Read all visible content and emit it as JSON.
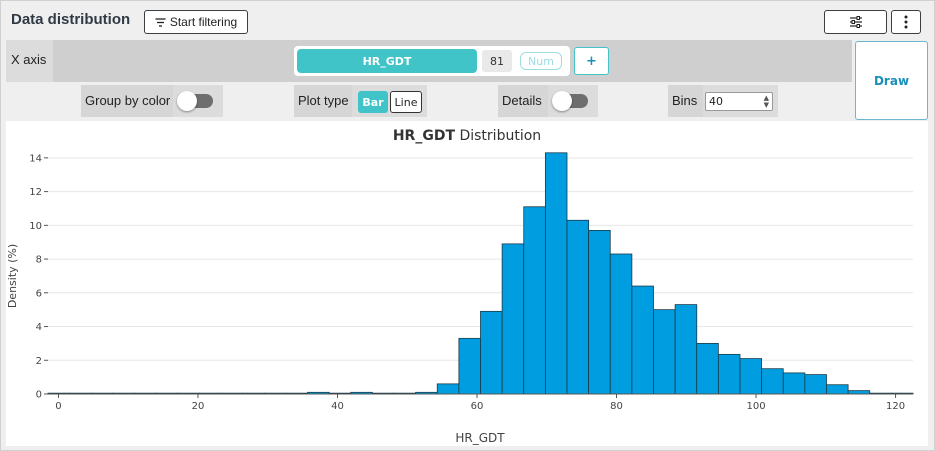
{
  "header": {
    "title": "Data distribution",
    "start_filtering_label": "Start filtering",
    "settings_icon": "sliders-icon",
    "more_icon": "vertical-ellipsis-icon"
  },
  "x_axis_row": {
    "label": "X axis",
    "variable": "HR_GDT",
    "count": "81",
    "type_badge": "Num",
    "add_label": "+"
  },
  "draw_label": "Draw",
  "options": {
    "group_by_color_label": "Group by color",
    "group_by_color_on": false,
    "plot_type_label": "Plot type",
    "plot_type_options": [
      "Bar",
      "Line"
    ],
    "plot_type_selected": "Bar",
    "details_label": "Details",
    "details_on": false,
    "bins_label": "Bins",
    "bins_value": "40"
  },
  "colors": {
    "accent": "#40c4c8",
    "bar_fill": "#009ee0",
    "bar_stroke": "#1a3a4a"
  },
  "chart_data": {
    "type": "bar",
    "title_bold": "HR_GDT",
    "title_rest": " Distribution",
    "xlabel": "HR_GDT",
    "ylabel": "Density (%)",
    "xlim": [
      -1.5,
      122.5
    ],
    "ylim": [
      0,
      15
    ],
    "xticks": [
      0,
      20,
      40,
      60,
      80,
      100,
      120
    ],
    "yticks": [
      0,
      2,
      4,
      6,
      8,
      10,
      12,
      14
    ],
    "grid": true,
    "bin_width": 3.1,
    "bin_start": -1.5,
    "values": [
      0.05,
      0.05,
      0.05,
      0.05,
      0.05,
      0.05,
      0.05,
      0.05,
      0.05,
      0.05,
      0.05,
      0.05,
      0.1,
      0.05,
      0.1,
      0.05,
      0.05,
      0.1,
      0.6,
      3.3,
      4.9,
      8.9,
      11.1,
      14.3,
      10.3,
      9.7,
      8.3,
      6.4,
      5.0,
      5.3,
      3.0,
      2.35,
      2.1,
      1.5,
      1.25,
      1.15,
      0.55,
      0.2,
      0.05,
      0.05
    ]
  }
}
